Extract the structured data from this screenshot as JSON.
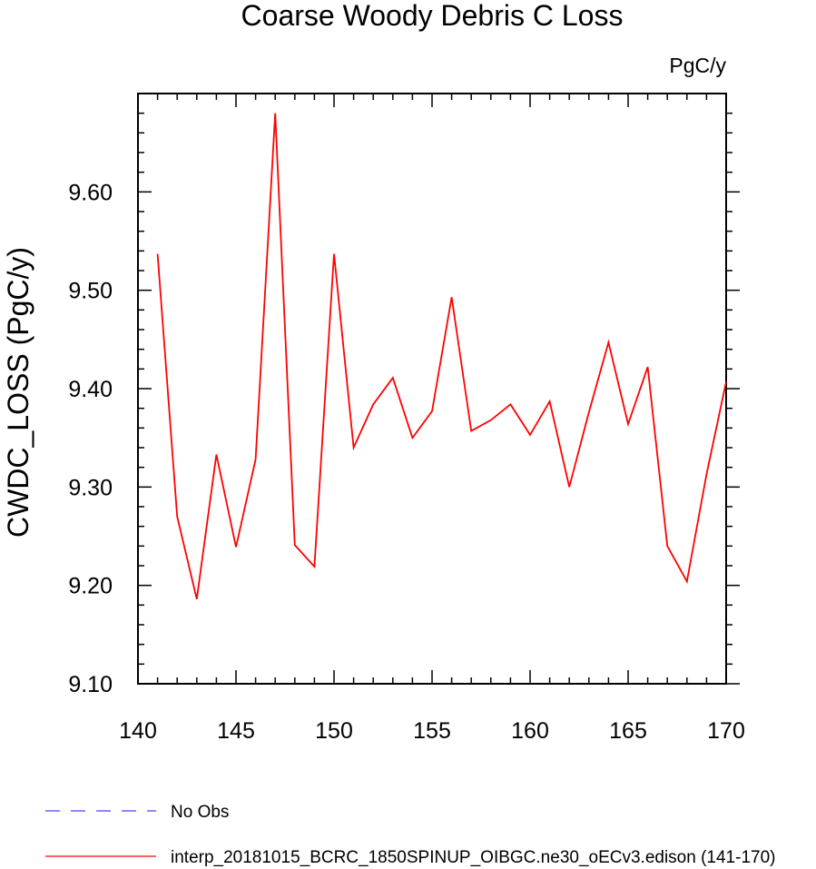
{
  "chart_data": {
    "type": "line",
    "title": "Coarse Woody Debris C Loss",
    "units_label": "PgC/y",
    "xlabel": "",
    "ylabel": "CWDC_LOSS  (PgC/y)",
    "xlim": [
      140,
      170
    ],
    "ylim": [
      9.1,
      9.7
    ],
    "xticks": [
      140,
      145,
      150,
      155,
      160,
      165,
      170
    ],
    "xtick_labels": [
      "140",
      "145",
      "150",
      "155",
      "160",
      "165",
      "170"
    ],
    "yticks": [
      9.1,
      9.2,
      9.3,
      9.4,
      9.5,
      9.6
    ],
    "ytick_labels": [
      "9.10",
      "9.20",
      "9.30",
      "9.40",
      "9.50",
      "9.60"
    ],
    "grid": false,
    "legend_position": "bottom",
    "series": [
      {
        "name": "interp_20181015_BCRC_1850SPINUP_OIBGC.ne30_oECv3.edison (141-170)",
        "color": "#ff0000",
        "style": "solid",
        "x": [
          141,
          142,
          143,
          144,
          145,
          146,
          147,
          148,
          149,
          150,
          151,
          152,
          153,
          154,
          155,
          156,
          157,
          158,
          159,
          160,
          161,
          162,
          163,
          164,
          165,
          166,
          167,
          168,
          169,
          170
        ],
        "values": [
          9.537,
          9.27,
          9.186,
          9.333,
          9.239,
          9.328,
          9.68,
          9.241,
          9.219,
          9.537,
          9.34,
          9.384,
          9.411,
          9.35,
          9.377,
          9.493,
          9.357,
          9.368,
          9.384,
          9.353,
          9.387,
          9.3,
          9.376,
          9.447,
          9.364,
          9.422,
          9.24,
          9.204,
          9.313,
          9.407
        ]
      },
      {
        "name": "No Obs",
        "color": "#4444ff",
        "style": "dashed",
        "x": [],
        "values": []
      }
    ]
  }
}
